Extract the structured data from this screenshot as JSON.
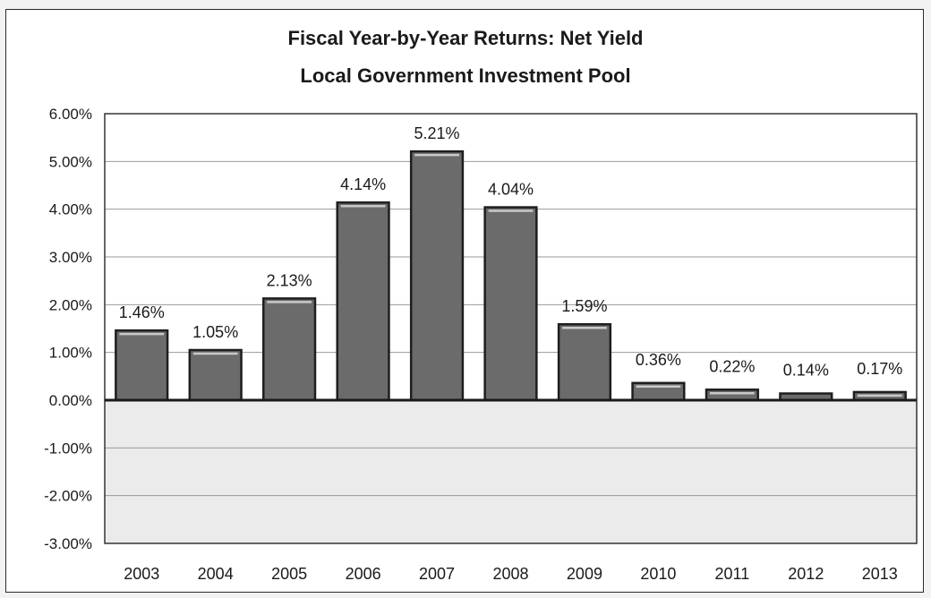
{
  "chart_data": {
    "type": "bar",
    "title": "Fiscal Year-by-Year Returns: Net Yield",
    "subtitle": "Local Government Investment Pool",
    "xlabel": "",
    "ylabel": "",
    "categories": [
      "2003",
      "2004",
      "2005",
      "2006",
      "2007",
      "2008",
      "2009",
      "2010",
      "2011",
      "2012",
      "2013"
    ],
    "values": [
      1.46,
      1.05,
      2.13,
      4.14,
      5.21,
      4.04,
      1.59,
      0.36,
      0.22,
      0.14,
      0.17
    ],
    "data_labels": [
      "1.46%",
      "1.05%",
      "2.13%",
      "4.14%",
      "5.21%",
      "4.04%",
      "1.59%",
      "0.36%",
      "0.22%",
      "0.14%",
      "0.17%"
    ],
    "ylim": [
      -3,
      6
    ],
    "yticks": [
      6,
      5,
      4,
      3,
      2,
      1,
      0,
      -1,
      -2,
      -3
    ],
    "ytick_labels": [
      "6.00%",
      "5.00%",
      "4.00%",
      "3.00%",
      "2.00%",
      "1.00%",
      "0.00%",
      "-1.00%",
      "-2.00%",
      "-3.00%"
    ],
    "grid": true,
    "legend": "none",
    "colors": {
      "bar_fill": "#6b6b6b",
      "bar_edge": "#1e1e1e",
      "bar_highlight": "#c9c9c9",
      "plot_background": "#ebebeb",
      "gridline": "#9a9a9a",
      "zero_line": "#1a1a1a"
    }
  }
}
